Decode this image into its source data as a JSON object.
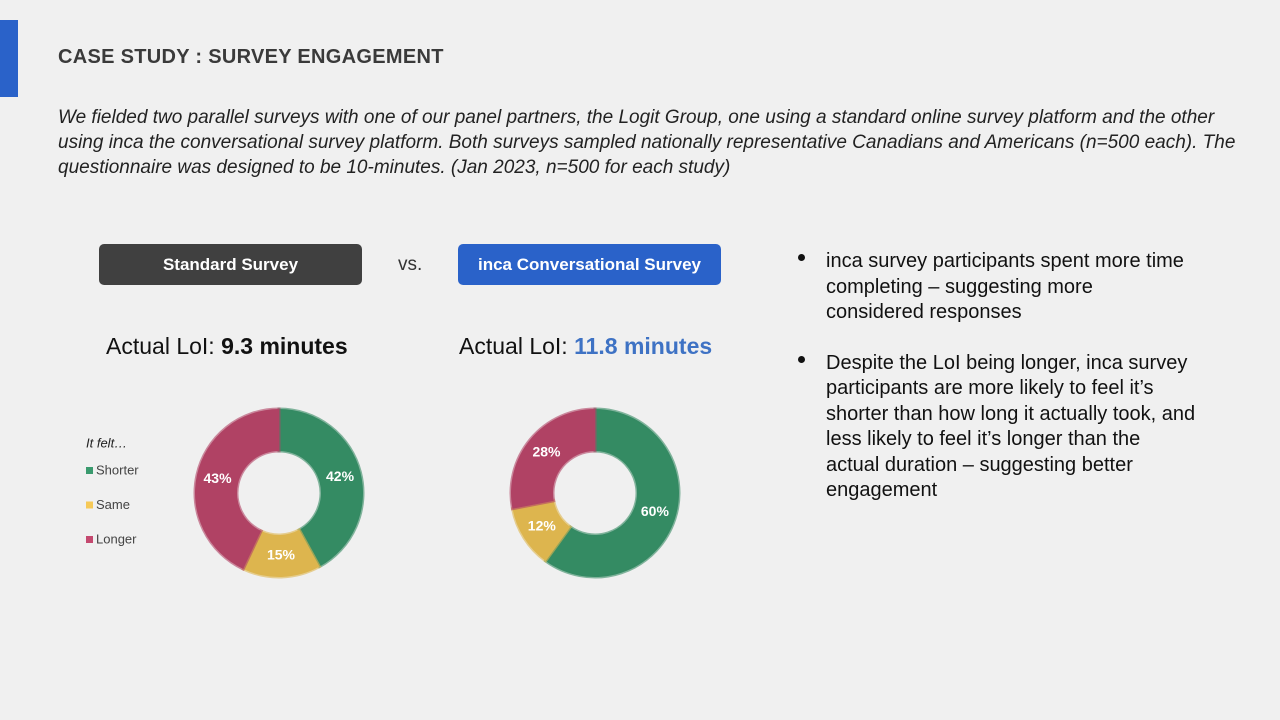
{
  "header": {
    "title": "CASE STUDY : SURVEY ENGAGEMENT"
  },
  "intro": "We fielded two parallel surveys with one of our panel partners, the Logit Group, one using a standard online survey platform and the other using inca the conversational survey platform.  Both surveys sampled nationally representative Canadians and Americans (n=500 each). The questionnaire was designed to be 10-minutes. (Jan 2023, n=500 for each study)",
  "comparison": {
    "left": {
      "button": "Standard Survey",
      "label": "Actual LoI:",
      "value": "9.3 minutes"
    },
    "vs": "vs.",
    "right": {
      "button": "inca Conversational Survey",
      "label": "Actual LoI:",
      "value": "11.8 minutes"
    }
  },
  "bullets": [
    "inca survey participants spent more time completing – suggesting more considered responses",
    "Despite the LoI being longer, inca survey participants are more likely to feel it’s shorter than how long it actually took, and less likely to feel it’s longer than the actual duration – suggesting better engagement"
  ],
  "chart_data": [
    {
      "type": "donut",
      "legend_title": "It felt…",
      "categories": [
        "Shorter",
        "Same",
        "Longer"
      ],
      "values": [
        42,
        15,
        43
      ],
      "value_labels": [
        "42%",
        "15%",
        "43%"
      ],
      "colors": [
        "#3a9a6e",
        "#f6c957",
        "#c4496f"
      ]
    },
    {
      "type": "donut",
      "values": [
        60,
        12,
        28
      ],
      "value_labels": [
        "60%",
        "12%",
        "28%"
      ],
      "colors": [
        "#3a9a6e",
        "#f6c957",
        "#c4496f"
      ]
    }
  ]
}
